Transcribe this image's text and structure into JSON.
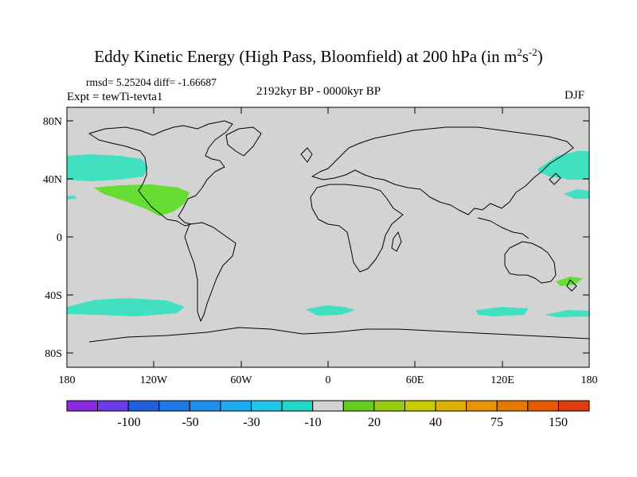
{
  "title": {
    "main": "Eddy Kinetic Energy (High Pass, Bloomfield) at 200 hPa (in m",
    "sup1": "2",
    "mid": "s",
    "sup2": "-2",
    "end": ")"
  },
  "stats": "rmsd= 5.25204  diff= -1.66687",
  "experiment": "Expt = tewTi-tevta1",
  "period": "2192kyr BP - 0000kyr BP",
  "season": "DJF",
  "axes": {
    "y_ticks": [
      "80N",
      "40N",
      "0",
      "40S",
      "80S"
    ],
    "x_ticks": [
      "180",
      "120W",
      "60W",
      "0",
      "60E",
      "120E",
      "180"
    ]
  },
  "colorbar": {
    "colors": [
      "#8a2be2",
      "#6a3de8",
      "#1f5fdc",
      "#1e78e6",
      "#1e90f0",
      "#1eaaf0",
      "#20c4e8",
      "#20d8c8",
      "#d3d3d3",
      "#66cc22",
      "#99cc11",
      "#c8cc00",
      "#e0b000",
      "#e89400",
      "#e87800",
      "#e85a00",
      "#e03a10"
    ],
    "labels": [
      "-100",
      "-50",
      "-30",
      "-10",
      "20",
      "40",
      "75",
      "150"
    ]
  },
  "colors": {
    "land_ocean": "#d3d3d3",
    "negative": "#40e0c0",
    "positive": "#66dd33",
    "coast": "#000000"
  }
}
